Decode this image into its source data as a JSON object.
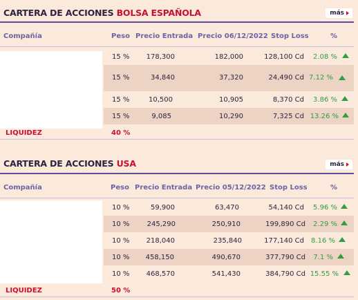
{
  "common": {
    "more_label": "más"
  },
  "spain": {
    "title_prefix": "CARTERA DE ACCIONES ",
    "title_accent": "BOLSA ESPAÑOLA",
    "headers": {
      "company": "Compañía",
      "peso": "Peso",
      "entrada": "Precio Entrada",
      "precio": "Precio 06/12/2022",
      "stop": "Stop Loss",
      "pct": "%"
    },
    "rows": [
      {
        "peso": "15 %",
        "entrada": "178,300",
        "precio": "182,000",
        "stop": "128,100 Cd",
        "pct": "2.08 %"
      },
      {
        "peso": "15 %",
        "entrada": "34,840",
        "precio": "37,320",
        "stop": "24,490 Cd",
        "pct": "7.12 %"
      },
      {
        "peso": "15 %",
        "entrada": "10,500",
        "precio": "10,905",
        "stop": "8,370 Cd",
        "pct": "3.86 %"
      },
      {
        "peso": "15 %",
        "entrada": "9,085",
        "precio": "10,290",
        "stop": "7,325 Cd",
        "pct": "13.26 %"
      }
    ],
    "liquidez_label": "LIQUIDEZ",
    "liquidez_value": "40 %"
  },
  "usa": {
    "title_prefix": "CARTERA DE ACCIONES ",
    "title_accent": "USA",
    "headers": {
      "company": "Compañía",
      "peso": "Peso",
      "entrada": "Precio Entrada",
      "precio": "Precio 05/12/2022",
      "stop": "Stop Loss",
      "pct": "%"
    },
    "rows": [
      {
        "peso": "10 %",
        "entrada": "59,900",
        "precio": "63,470",
        "stop": "54,140 Cd",
        "pct": "5.96 %"
      },
      {
        "peso": "10 %",
        "entrada": "245,290",
        "precio": "250,910",
        "stop": "199,890 Cd",
        "pct": "2.29 %"
      },
      {
        "peso": "10 %",
        "entrada": "218,040",
        "precio": "235,840",
        "stop": "177,140 Cd",
        "pct": "8.16 %"
      },
      {
        "peso": "10 %",
        "entrada": "458,150",
        "precio": "490,670",
        "stop": "377,790 Cd",
        "pct": "7.1 %"
      },
      {
        "peso": "10 %",
        "entrada": "468,570",
        "precio": "541,430",
        "stop": "384,790 Cd",
        "pct": "15.55 %"
      }
    ],
    "liquidez_label": "LIQUIDEZ",
    "liquidez_value": "50 %"
  },
  "colors": {
    "accent": "#c8102e",
    "gain": "#2f9e44",
    "rule": "#5b4d9c"
  },
  "icons": {
    "more": "caret-right-icon",
    "trend": "triangle-up-icon"
  }
}
